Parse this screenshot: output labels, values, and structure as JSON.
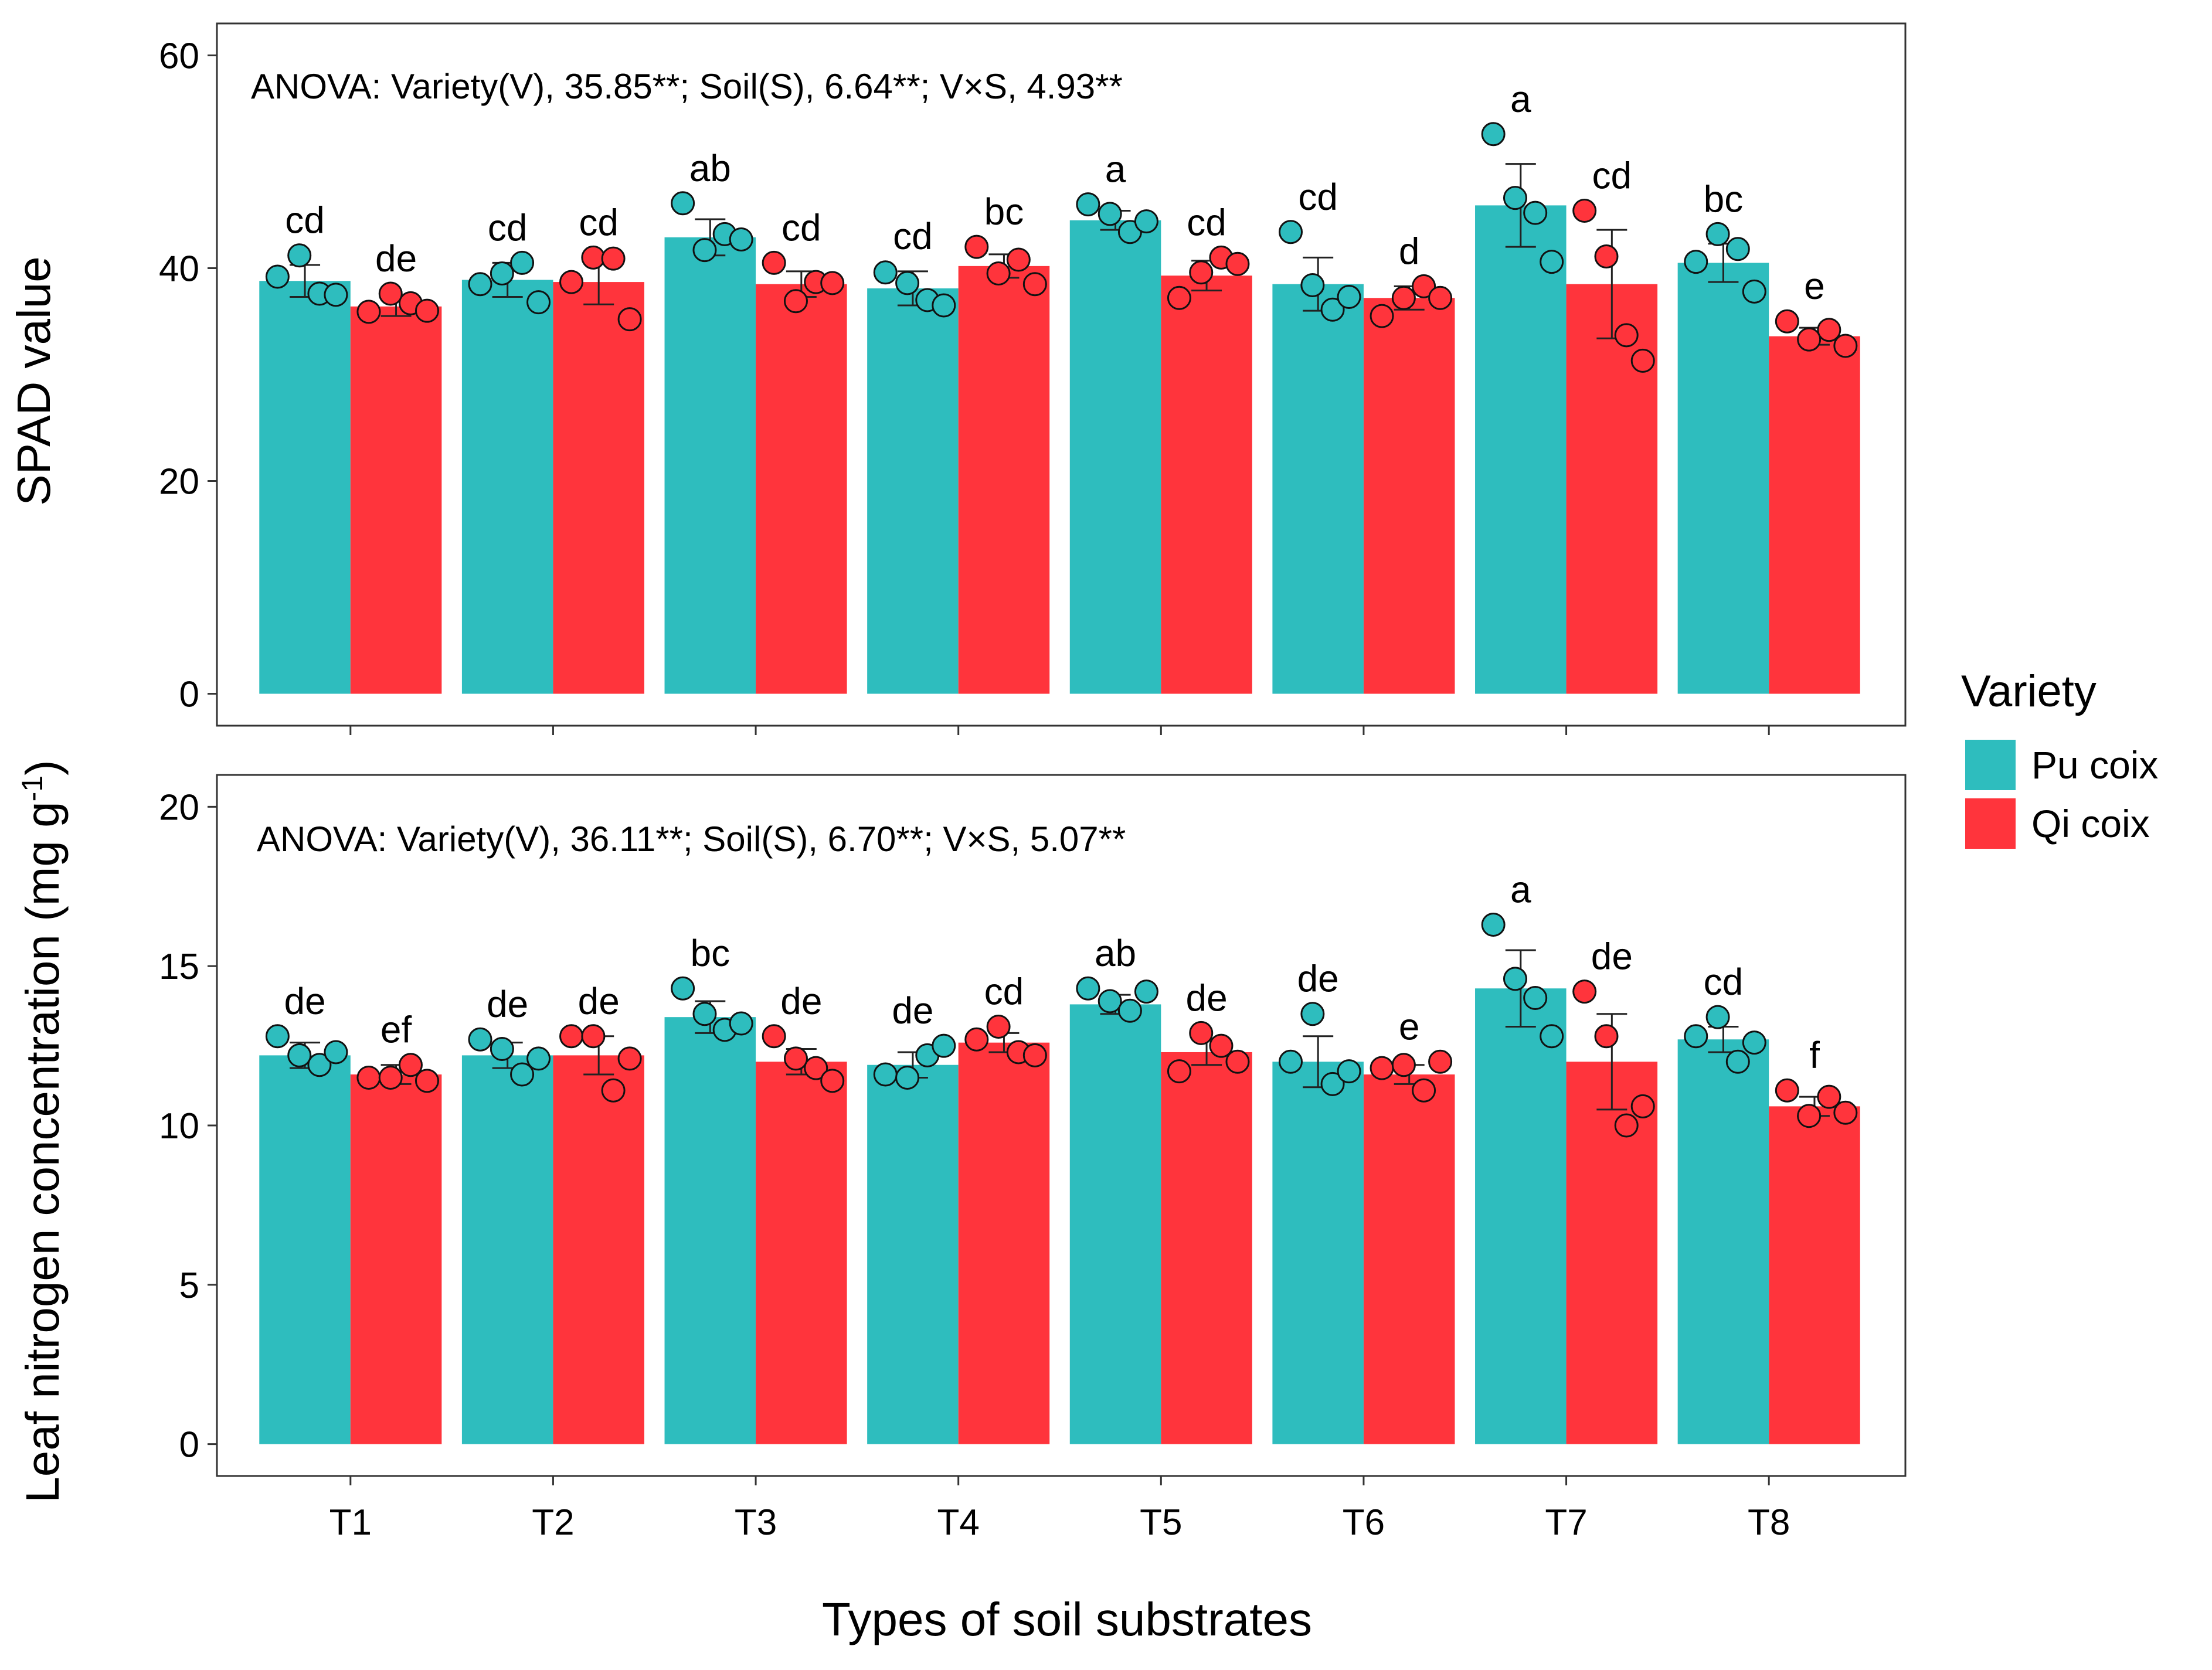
{
  "colors": {
    "pu": "#2EBDBE",
    "qi": "#FF343C",
    "axis": "#333333"
  },
  "legend": {
    "title": "Variety",
    "items": [
      {
        "label": "Pu coix",
        "color": "#2EBDBE"
      },
      {
        "label": "Qi coix",
        "color": "#FF343C"
      }
    ]
  },
  "xlabel": "Types of soil substrates",
  "chart_data": [
    {
      "type": "bar",
      "title": "",
      "ylabel": "SPAD value",
      "ylim": [
        -3,
        63
      ],
      "yticks": [
        0,
        20,
        40,
        60
      ],
      "annotation": "ANOVA: Variety(V), 35.85**; Soil(S), 6.64**; V×S, 4.93**",
      "categories": [
        "T1",
        "T2",
        "T3",
        "T4",
        "T5",
        "T6",
        "T7",
        "T8"
      ],
      "series": [
        {
          "name": "Pu coix",
          "values": [
            38.8,
            38.9,
            42.9,
            38.1,
            44.5,
            38.5,
            45.9,
            40.5
          ],
          "errors": [
            1.5,
            1.6,
            1.7,
            1.6,
            0.9,
            2.5,
            3.9,
            1.8
          ],
          "letters": [
            "cd",
            "cd",
            "ab",
            "cd",
            "a",
            "cd",
            "a",
            "bc"
          ],
          "points": [
            [
              39.2,
              41.2,
              37.6,
              37.5
            ],
            [
              38.5,
              39.5,
              40.5,
              36.8
            ],
            [
              46.1,
              41.7,
              43.2,
              42.7
            ],
            [
              39.6,
              38.6,
              37.0,
              36.5
            ],
            [
              46.0,
              45.1,
              43.4,
              44.4
            ],
            [
              43.4,
              38.4,
              36.1,
              37.3
            ],
            [
              52.6,
              46.6,
              45.2,
              40.6
            ],
            [
              40.6,
              43.2,
              41.8,
              37.8
            ]
          ]
        },
        {
          "name": "Qi coix",
          "values": [
            36.4,
            38.7,
            38.5,
            40.2,
            39.3,
            37.2,
            38.5,
            33.6
          ],
          "errors": [
            0.9,
            2.1,
            1.2,
            1.1,
            1.4,
            1.1,
            5.1,
            0.8
          ],
          "letters": [
            "de",
            "cd",
            "cd",
            "bc",
            "cd",
            "d",
            "cd",
            "e"
          ],
          "points": [
            [
              35.9,
              37.6,
              36.7,
              36.0
            ],
            [
              38.7,
              41.0,
              40.9,
              35.2
            ],
            [
              40.5,
              36.9,
              38.7,
              38.6
            ],
            [
              42.0,
              39.5,
              40.8,
              38.5
            ],
            [
              37.2,
              39.6,
              41.0,
              40.4
            ],
            [
              35.5,
              37.2,
              38.3,
              37.2
            ],
            [
              45.4,
              41.1,
              33.7,
              31.3
            ],
            [
              35.0,
              33.3,
              34.2,
              32.7
            ]
          ]
        }
      ]
    },
    {
      "type": "bar",
      "title": "",
      "ylabel": "Leaf nitrogen concentration (mg g",
      "ylabel_sup": "-1",
      "ylabel_end": ")",
      "ylim": [
        -1.0,
        21.0
      ],
      "yticks": [
        0,
        5,
        10,
        15,
        20
      ],
      "annotation": "ANOVA: Variety(V), 36.11**; Soil(S), 6.70**; V×S, 5.07**",
      "categories": [
        "T1",
        "T2",
        "T3",
        "T4",
        "T5",
        "T6",
        "T7",
        "T8"
      ],
      "series": [
        {
          "name": "Pu coix",
          "values": [
            12.2,
            12.2,
            13.4,
            11.9,
            13.8,
            12.0,
            14.3,
            12.7
          ],
          "errors": [
            0.4,
            0.4,
            0.5,
            0.4,
            0.3,
            0.8,
            1.2,
            0.4
          ],
          "letters": [
            "de",
            "de",
            "bc",
            "de",
            "ab",
            "de",
            "a",
            "cd"
          ],
          "points": [
            [
              12.8,
              12.2,
              11.9,
              12.3
            ],
            [
              12.7,
              12.4,
              11.6,
              12.1
            ],
            [
              14.3,
              13.5,
              13.0,
              13.2
            ],
            [
              11.6,
              11.5,
              12.2,
              12.5
            ],
            [
              14.3,
              13.9,
              13.6,
              14.2
            ],
            [
              12.0,
              13.5,
              11.3,
              11.7
            ],
            [
              16.3,
              14.6,
              14.0,
              12.8
            ],
            [
              12.8,
              13.4,
              12.0,
              12.6
            ]
          ]
        },
        {
          "name": "Qi coix",
          "values": [
            11.6,
            12.2,
            12.0,
            12.6,
            12.3,
            11.6,
            12.0,
            10.6
          ],
          "errors": [
            0.3,
            0.6,
            0.4,
            0.3,
            0.4,
            0.3,
            1.5,
            0.3
          ],
          "letters": [
            "ef",
            "de",
            "de",
            "cd",
            "de",
            "e",
            "de",
            "f"
          ],
          "points": [
            [
              11.5,
              11.5,
              11.9,
              11.4
            ],
            [
              12.8,
              12.8,
              11.1,
              12.1
            ],
            [
              12.8,
              12.1,
              11.8,
              11.4
            ],
            [
              12.7,
              13.1,
              12.3,
              12.2
            ],
            [
              11.7,
              12.9,
              12.5,
              12.0
            ],
            [
              11.8,
              11.9,
              11.1,
              12.0
            ],
            [
              14.2,
              12.8,
              10.0,
              10.6
            ],
            [
              11.1,
              10.3,
              10.9,
              10.4
            ]
          ]
        }
      ]
    }
  ]
}
